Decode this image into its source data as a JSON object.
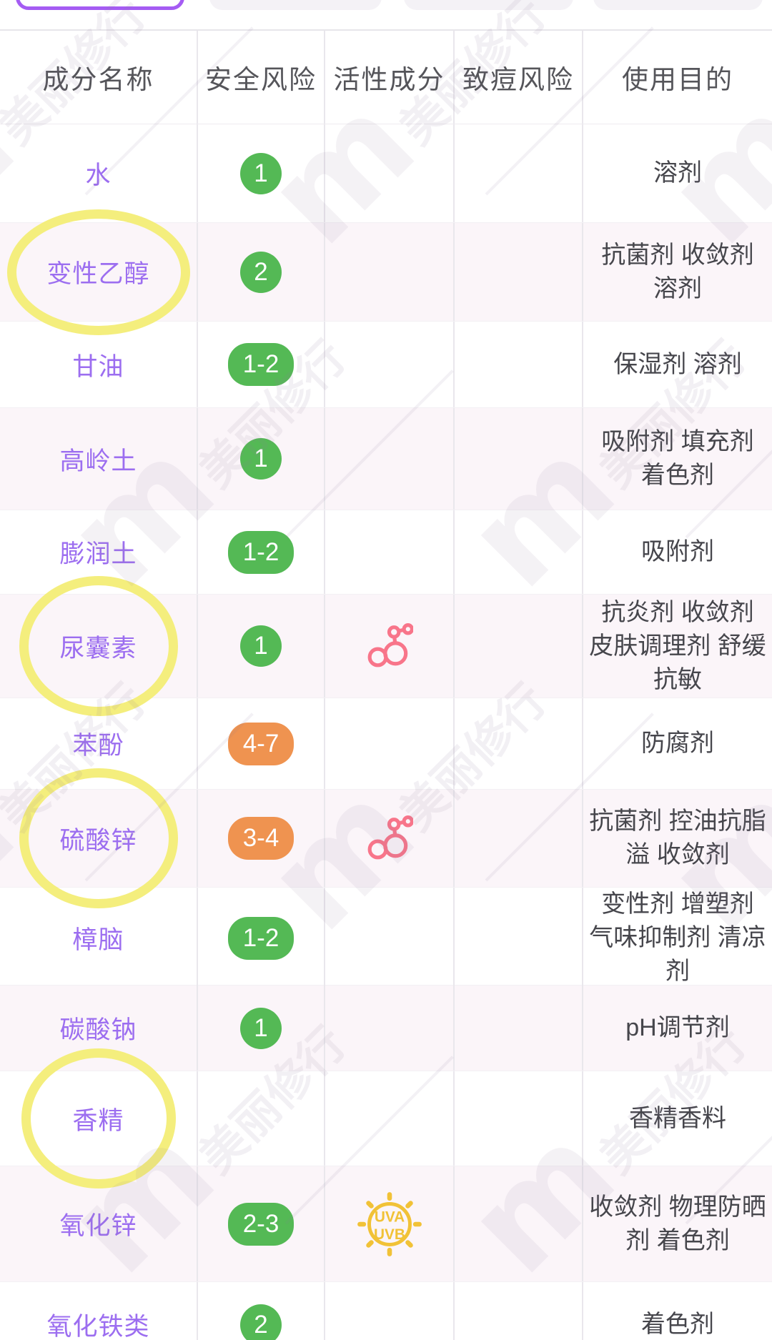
{
  "topbar": {
    "tabs": [
      {
        "label": "",
        "state": "selected"
      },
      {
        "label": "",
        "state": "normal"
      },
      {
        "label": "",
        "state": "normal"
      },
      {
        "label": "",
        "state": "normal"
      }
    ]
  },
  "table": {
    "headers": [
      "成分名称",
      "安全风险",
      "活性成分",
      "致痘风险",
      "使用目的"
    ],
    "rows": [
      {
        "name": "水",
        "risk": "1",
        "risk_color": "green",
        "active": false,
        "uv": false,
        "acne": "",
        "purpose": "溶剂",
        "highlight": false
      },
      {
        "name": "变性乙醇",
        "risk": "2",
        "risk_color": "green",
        "active": false,
        "uv": false,
        "acne": "",
        "purpose": "抗菌剂 收敛剂 溶剂",
        "highlight": true
      },
      {
        "name": "甘油",
        "risk": "1-2",
        "risk_color": "green",
        "active": false,
        "uv": false,
        "acne": "",
        "purpose": "保湿剂 溶剂",
        "highlight": false
      },
      {
        "name": "高岭土",
        "risk": "1",
        "risk_color": "green",
        "active": false,
        "uv": false,
        "acne": "",
        "purpose": "吸附剂 填充剂 着色剂",
        "highlight": false
      },
      {
        "name": "膨润土",
        "risk": "1-2",
        "risk_color": "green",
        "active": false,
        "uv": false,
        "acne": "",
        "purpose": "吸附剂",
        "highlight": false
      },
      {
        "name": "尿囊素",
        "risk": "1",
        "risk_color": "green",
        "active": true,
        "uv": false,
        "acne": "",
        "purpose": "抗炎剂 收敛剂 皮肤调理剂 舒缓抗敏",
        "highlight": true
      },
      {
        "name": "苯酚",
        "risk": "4-7",
        "risk_color": "orange",
        "active": false,
        "uv": false,
        "acne": "",
        "purpose": "防腐剂",
        "highlight": false
      },
      {
        "name": "硫酸锌",
        "risk": "3-4",
        "risk_color": "orange",
        "active": true,
        "uv": false,
        "acne": "",
        "purpose": "抗菌剂 控油抗脂溢 收敛剂",
        "highlight": true
      },
      {
        "name": "樟脑",
        "risk": "1-2",
        "risk_color": "green",
        "active": false,
        "uv": false,
        "acne": "",
        "purpose": "变性剂 增塑剂 气味抑制剂 清凉剂",
        "highlight": false
      },
      {
        "name": "碳酸钠",
        "risk": "1",
        "risk_color": "green",
        "active": false,
        "uv": false,
        "acne": "",
        "purpose": "pH调节剂",
        "highlight": false
      },
      {
        "name": "香精",
        "risk": "",
        "risk_color": "",
        "active": false,
        "uv": false,
        "acne": "",
        "purpose": "香精香料",
        "highlight": true
      },
      {
        "name": "氧化锌",
        "risk": "2-3",
        "risk_color": "green",
        "active": false,
        "uv": true,
        "acne": "",
        "purpose": "收敛剂 物理防晒剂 着色剂",
        "highlight": false
      },
      {
        "name": "氧化铁类",
        "risk": "2",
        "risk_color": "green",
        "active": false,
        "uv": false,
        "acne": "",
        "purpose": "着色剂",
        "highlight": false
      }
    ]
  },
  "icons": {
    "active_ingredient": "molecule-icon",
    "uv_protection": "sun-uva-uvb-icon",
    "uv_text_top": "UVA",
    "uv_text_bottom": "UVB"
  },
  "watermark": {
    "logo": "m",
    "text": "美丽修行"
  },
  "colors": {
    "ingredient_link": "#9c6ef0",
    "selected_tab_border": "#a55cf3",
    "risk_low_green": "#54b955",
    "risk_high_orange": "#ef9350",
    "highlight_ring_yellow": "#f4ee7d",
    "uv_icon_yellow": "#f1c237",
    "molecule_icon_pink": "#f8758a",
    "alt_row_pink": "#fbf5f9"
  }
}
